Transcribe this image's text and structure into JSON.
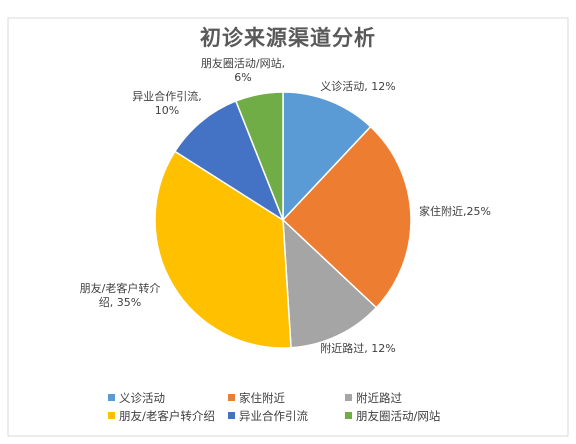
{
  "chart_data": {
    "type": "pie",
    "title": "初诊来源渠道分析",
    "slices": [
      {
        "name": "义诊活动",
        "value": 12,
        "label": "义诊活动, 12%",
        "color": "#5B9BD5"
      },
      {
        "name": "家住附近",
        "value": 25,
        "label": "家住附近,25%",
        "color": "#ED7D31"
      },
      {
        "name": "附近路过",
        "value": 12,
        "label": "附近路过, 12%",
        "color": "#A5A5A5"
      },
      {
        "name": "朋友/老客户转介绍",
        "value": 35,
        "label_lines": [
          "朋友/老客户转介",
          "绍, 35%"
        ],
        "color": "#FFC000"
      },
      {
        "name": "异业合作引流",
        "value": 10,
        "label_lines": [
          "异业合作引流,",
          "10%"
        ],
        "color": "#4472C4"
      },
      {
        "name": "朋友圈活动/网站",
        "value": 6,
        "label_lines": [
          "朋友圈活动/网站,",
          "6%"
        ],
        "color": "#70AD47"
      }
    ],
    "legend": {
      "placement": "bottom",
      "items": [
        "义诊活动",
        "家住附近",
        "附近路过",
        "朋友/老客户转介绍",
        "异业合作引流",
        "朋友圈活动/网站"
      ]
    }
  }
}
